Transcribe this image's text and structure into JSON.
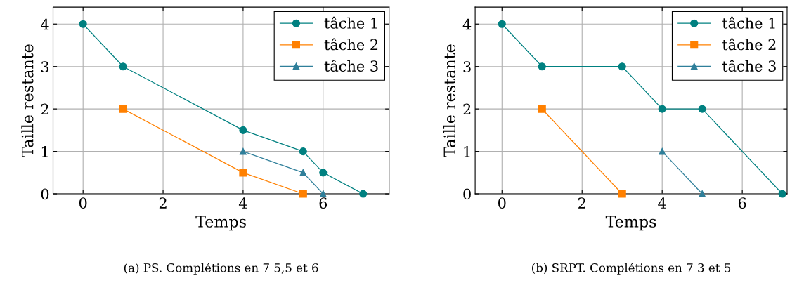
{
  "chart_data": [
    {
      "type": "line",
      "xlabel": "Temps",
      "ylabel": "Taille restante",
      "xlim": [
        -0.75,
        7.65
      ],
      "ylim": [
        0,
        4.4
      ],
      "xticks": [
        0,
        2,
        4,
        6
      ],
      "yticks": [
        0,
        1,
        2,
        3,
        4
      ],
      "grid": true,
      "legend": "top right",
      "annotations": [
        "(a) PS. Complétions en 7 5,5 et 6"
      ],
      "series": [
        {
          "name": "tâche 1",
          "color": "#008080",
          "marker": "circle",
          "x": [
            0,
            1,
            4,
            5.5,
            6,
            7
          ],
          "values": [
            4,
            3,
            1.5,
            1,
            0.5,
            0
          ]
        },
        {
          "name": "tâche 2",
          "color": "#ff8000",
          "marker": "square",
          "x": [
            1,
            4,
            5.5
          ],
          "values": [
            2,
            0.5,
            0
          ]
        },
        {
          "name": "tâche 3",
          "color": "#2f7f9a",
          "marker": "triangle",
          "x": [
            4,
            5.5,
            6
          ],
          "values": [
            1,
            0.5,
            0
          ]
        }
      ]
    },
    {
      "type": "line",
      "xlabel": "Temps",
      "ylabel": "Taille restante",
      "xlim": [
        -0.67,
        7.12
      ],
      "ylim": [
        0,
        4.4
      ],
      "xticks": [
        0,
        2,
        4,
        6
      ],
      "yticks": [
        0,
        1,
        2,
        3,
        4
      ],
      "grid": true,
      "legend": "top right",
      "annotations": [
        "(b) SRPT. Complétions en 7 3 et 5"
      ],
      "series": [
        {
          "name": "tâche 1",
          "color": "#008080",
          "marker": "circle",
          "x": [
            0,
            1,
            3,
            4,
            5,
            7
          ],
          "values": [
            4,
            3,
            3,
            2,
            2,
            0
          ]
        },
        {
          "name": "tâche 2",
          "color": "#ff8000",
          "marker": "square",
          "x": [
            1,
            3
          ],
          "values": [
            2,
            0
          ]
        },
        {
          "name": "tâche 3",
          "color": "#2f7f9a",
          "marker": "triangle",
          "x": [
            4,
            5
          ],
          "values": [
            1,
            0
          ]
        }
      ]
    }
  ]
}
